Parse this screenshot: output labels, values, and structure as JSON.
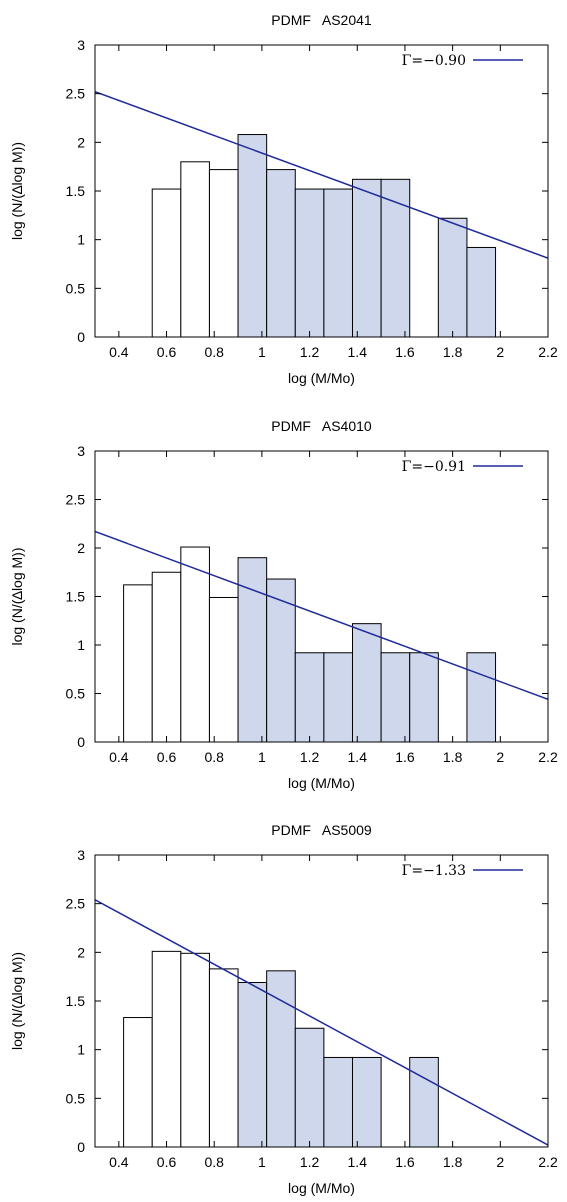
{
  "colors": {
    "fill": "#cfd7ec",
    "line": "#1f2a9a",
    "edge": "#000000"
  },
  "chart_data": [
    {
      "type": "bar",
      "title": "PDMF   AS2041",
      "xlabel": "log (M/Mo)",
      "ylabel": "log (N/(∆log M))",
      "xlim": [
        0.3,
        2.2
      ],
      "ylim": [
        0,
        3
      ],
      "xticks": [
        0.4,
        0.6,
        0.8,
        1,
        1.2,
        1.4,
        1.6,
        1.8,
        2,
        2.2
      ],
      "yticks": [
        0,
        0.5,
        1,
        1.5,
        2,
        2.5,
        3
      ],
      "bin_width": 0.12,
      "bars": [
        {
          "x": 0.54,
          "value": 1.52,
          "shaded": false
        },
        {
          "x": 0.66,
          "value": 1.8,
          "shaded": false
        },
        {
          "x": 0.78,
          "value": 1.72,
          "shaded": false
        },
        {
          "x": 0.9,
          "value": 2.08,
          "shaded": true
        },
        {
          "x": 1.02,
          "value": 1.72,
          "shaded": true
        },
        {
          "x": 1.14,
          "value": 1.52,
          "shaded": true
        },
        {
          "x": 1.26,
          "value": 1.52,
          "shaded": true
        },
        {
          "x": 1.38,
          "value": 1.62,
          "shaded": true
        },
        {
          "x": 1.5,
          "value": 1.62,
          "shaded": true
        },
        {
          "x": 1.74,
          "value": 1.22,
          "shaded": true
        },
        {
          "x": 1.86,
          "value": 0.92,
          "shaded": true
        }
      ],
      "fit": {
        "x": [
          0.3,
          2.2
        ],
        "y": [
          2.52,
          0.81
        ]
      },
      "legend": "Γ=−0.90"
    },
    {
      "type": "bar",
      "title": "PDMF   AS4010",
      "xlabel": "log (M/Mo)",
      "ylabel": "log (N/(∆log M))",
      "xlim": [
        0.3,
        2.2
      ],
      "ylim": [
        0,
        3
      ],
      "xticks": [
        0.4,
        0.6,
        0.8,
        1,
        1.2,
        1.4,
        1.6,
        1.8,
        2,
        2.2
      ],
      "yticks": [
        0,
        0.5,
        1,
        1.5,
        2,
        2.5,
        3
      ],
      "bin_width": 0.12,
      "bars": [
        {
          "x": 0.42,
          "value": 1.62,
          "shaded": false
        },
        {
          "x": 0.54,
          "value": 1.75,
          "shaded": false
        },
        {
          "x": 0.66,
          "value": 2.01,
          "shaded": false
        },
        {
          "x": 0.78,
          "value": 1.49,
          "shaded": false
        },
        {
          "x": 0.9,
          "value": 1.9,
          "shaded": true
        },
        {
          "x": 1.02,
          "value": 1.68,
          "shaded": true
        },
        {
          "x": 1.14,
          "value": 0.92,
          "shaded": true
        },
        {
          "x": 1.26,
          "value": 0.92,
          "shaded": true
        },
        {
          "x": 1.38,
          "value": 1.22,
          "shaded": true
        },
        {
          "x": 1.5,
          "value": 0.92,
          "shaded": true
        },
        {
          "x": 1.62,
          "value": 0.92,
          "shaded": true
        },
        {
          "x": 1.86,
          "value": 0.92,
          "shaded": true
        }
      ],
      "fit": {
        "x": [
          0.3,
          2.2
        ],
        "y": [
          2.17,
          0.44
        ]
      },
      "legend": "Γ=−0.91"
    },
    {
      "type": "bar",
      "title": "PDMF   AS5009",
      "xlabel": "log (M/Mo)",
      "ylabel": "log (N/(∆log M))",
      "xlim": [
        0.3,
        2.2
      ],
      "ylim": [
        0,
        3
      ],
      "xticks": [
        0.4,
        0.6,
        0.8,
        1,
        1.2,
        1.4,
        1.6,
        1.8,
        2,
        2.2
      ],
      "yticks": [
        0,
        0.5,
        1,
        1.5,
        2,
        2.5,
        3
      ],
      "bin_width": 0.12,
      "bars": [
        {
          "x": 0.42,
          "value": 1.33,
          "shaded": false
        },
        {
          "x": 0.54,
          "value": 2.01,
          "shaded": false
        },
        {
          "x": 0.66,
          "value": 1.99,
          "shaded": false
        },
        {
          "x": 0.78,
          "value": 1.83,
          "shaded": false
        },
        {
          "x": 0.9,
          "value": 1.69,
          "shaded": true
        },
        {
          "x": 1.02,
          "value": 1.81,
          "shaded": true
        },
        {
          "x": 1.14,
          "value": 1.22,
          "shaded": true
        },
        {
          "x": 1.26,
          "value": 0.92,
          "shaded": true
        },
        {
          "x": 1.38,
          "value": 0.92,
          "shaded": true
        },
        {
          "x": 1.62,
          "value": 0.92,
          "shaded": true
        }
      ],
      "fit": {
        "x": [
          0.3,
          2.2
        ],
        "y": [
          2.54,
          0.02
        ]
      },
      "legend": "Γ=−1.33"
    }
  ]
}
